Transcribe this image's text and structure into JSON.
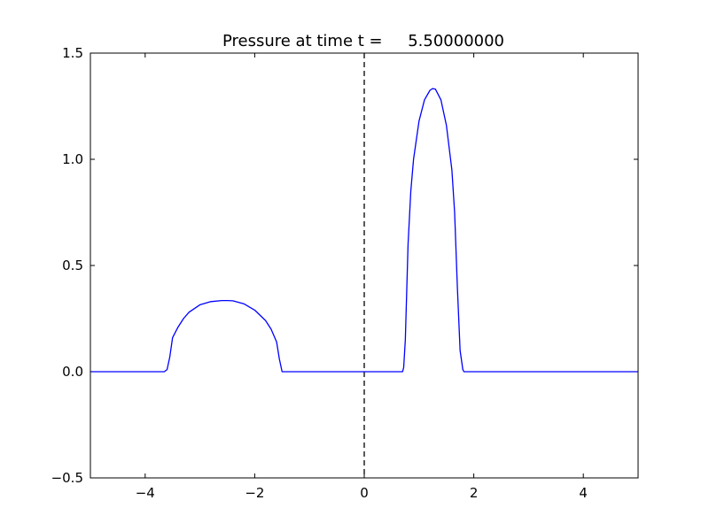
{
  "chart_data": {
    "type": "line",
    "title": "Pressure at time t =     5.50000000",
    "xlabel": "",
    "ylabel": "",
    "xlim": [
      -5,
      5
    ],
    "ylim": [
      -0.5,
      1.5
    ],
    "grid": false,
    "x_ticks": [
      -4,
      -2,
      0,
      2,
      4
    ],
    "x_tick_labels": [
      "−4",
      "−2",
      "0",
      "2",
      "4"
    ],
    "y_ticks": [
      -0.5,
      0.0,
      0.5,
      1.0,
      1.5
    ],
    "y_tick_labels": [
      "−0.5",
      "0.0",
      "0.5",
      "1.0",
      "1.5"
    ],
    "colors": {
      "series": "#0000ff",
      "reference_line": "#000000"
    },
    "reference_lines": [
      {
        "orientation": "vertical",
        "x": 0,
        "style": "dashed"
      }
    ],
    "series": [
      {
        "x": [
          -5.0,
          -3.65,
          -3.6,
          -3.55,
          -3.5,
          -3.4,
          -3.3,
          -3.2,
          -3.0,
          -2.8,
          -2.6,
          -2.5,
          -2.4,
          -2.2,
          -2.0,
          -1.8,
          -1.7,
          -1.6,
          -1.55,
          -1.5,
          -1.45,
          0.0,
          0.7,
          0.72,
          0.75,
          0.8,
          0.85,
          0.9,
          1.0,
          1.1,
          1.2,
          1.25,
          1.3,
          1.4,
          1.5,
          1.6,
          1.65,
          1.7,
          1.75,
          1.8,
          1.82,
          5.0
        ],
        "y": [
          0.0,
          0.0,
          0.01,
          0.07,
          0.16,
          0.21,
          0.25,
          0.28,
          0.315,
          0.33,
          0.335,
          0.335,
          0.334,
          0.32,
          0.29,
          0.24,
          0.2,
          0.14,
          0.06,
          0.0,
          0.0,
          0.0,
          0.0,
          0.02,
          0.15,
          0.6,
          0.85,
          1.0,
          1.18,
          1.28,
          1.325,
          1.333,
          1.33,
          1.28,
          1.16,
          0.95,
          0.75,
          0.4,
          0.1,
          0.01,
          0.0,
          0.0
        ]
      }
    ]
  }
}
